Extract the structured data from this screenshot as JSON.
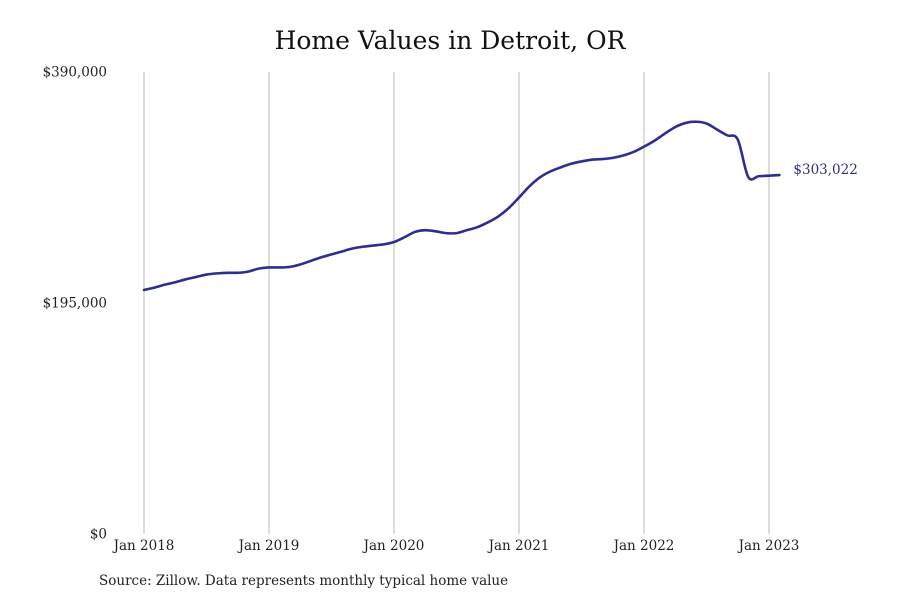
{
  "title": "Home Values in Detroit, OR",
  "source": "Source: Zillow. Data represents monthly typical home value",
  "colors": {
    "line": "#2e2e8c",
    "grid": "#b8b8b8",
    "text": "#222222"
  },
  "chart_data": {
    "type": "line",
    "title": "Home Values in Detroit, OR",
    "xlabel": "",
    "ylabel": "",
    "ylim": [
      0,
      390000
    ],
    "y_ticks": [
      {
        "value": 0,
        "label": "$0"
      },
      {
        "value": 195000,
        "label": "$195,000"
      },
      {
        "value": 390000,
        "label": "$390,000"
      }
    ],
    "x_ticks": [
      {
        "value": "2018-01",
        "label": "Jan 2018"
      },
      {
        "value": "2019-01",
        "label": "Jan 2019"
      },
      {
        "value": "2020-01",
        "label": "Jan 2020"
      },
      {
        "value": "2021-01",
        "label": "Jan 2021"
      },
      {
        "value": "2022-01",
        "label": "Jan 2022"
      },
      {
        "value": "2023-01",
        "label": "Jan 2023"
      }
    ],
    "grid": "vertical",
    "end_label": "$303,022",
    "series": [
      {
        "x": [
          "2018-01",
          "2018-02",
          "2018-03",
          "2018-04",
          "2018-05",
          "2018-06",
          "2018-07",
          "2018-08",
          "2018-09",
          "2018-10",
          "2018-11",
          "2018-12",
          "2019-01",
          "2019-02",
          "2019-03",
          "2019-04",
          "2019-05",
          "2019-06",
          "2019-07",
          "2019-08",
          "2019-09",
          "2019-10",
          "2019-11",
          "2019-12",
          "2020-01",
          "2020-02",
          "2020-03",
          "2020-04",
          "2020-05",
          "2020-06",
          "2020-07",
          "2020-08",
          "2020-09",
          "2020-10",
          "2020-11",
          "2020-12",
          "2021-01",
          "2021-02",
          "2021-03",
          "2021-04",
          "2021-05",
          "2021-06",
          "2021-07",
          "2021-08",
          "2021-09",
          "2021-10",
          "2021-11",
          "2021-12",
          "2022-01",
          "2022-02",
          "2022-03",
          "2022-04",
          "2022-05",
          "2022-06",
          "2022-07",
          "2022-08",
          "2022-09",
          "2022-10",
          "2022-11",
          "2022-12",
          "2023-01",
          "2023-02"
        ],
        "values": [
          206000,
          208000,
          210500,
          212500,
          215000,
          217000,
          219000,
          220000,
          220500,
          220500,
          221500,
          224000,
          225000,
          225000,
          225500,
          227500,
          230500,
          233500,
          236000,
          238500,
          241000,
          242500,
          243500,
          244500,
          246500,
          250500,
          255000,
          256500,
          255500,
          254000,
          254000,
          256500,
          259000,
          263000,
          268000,
          275000,
          284000,
          293500,
          301000,
          306000,
          309500,
          312500,
          314500,
          316000,
          316500,
          317500,
          319500,
          322500,
          327000,
          332000,
          338000,
          343500,
          347000,
          348000,
          346500,
          341500,
          336500,
          333000,
          301500,
          302000,
          302500,
          303022
        ]
      }
    ]
  }
}
